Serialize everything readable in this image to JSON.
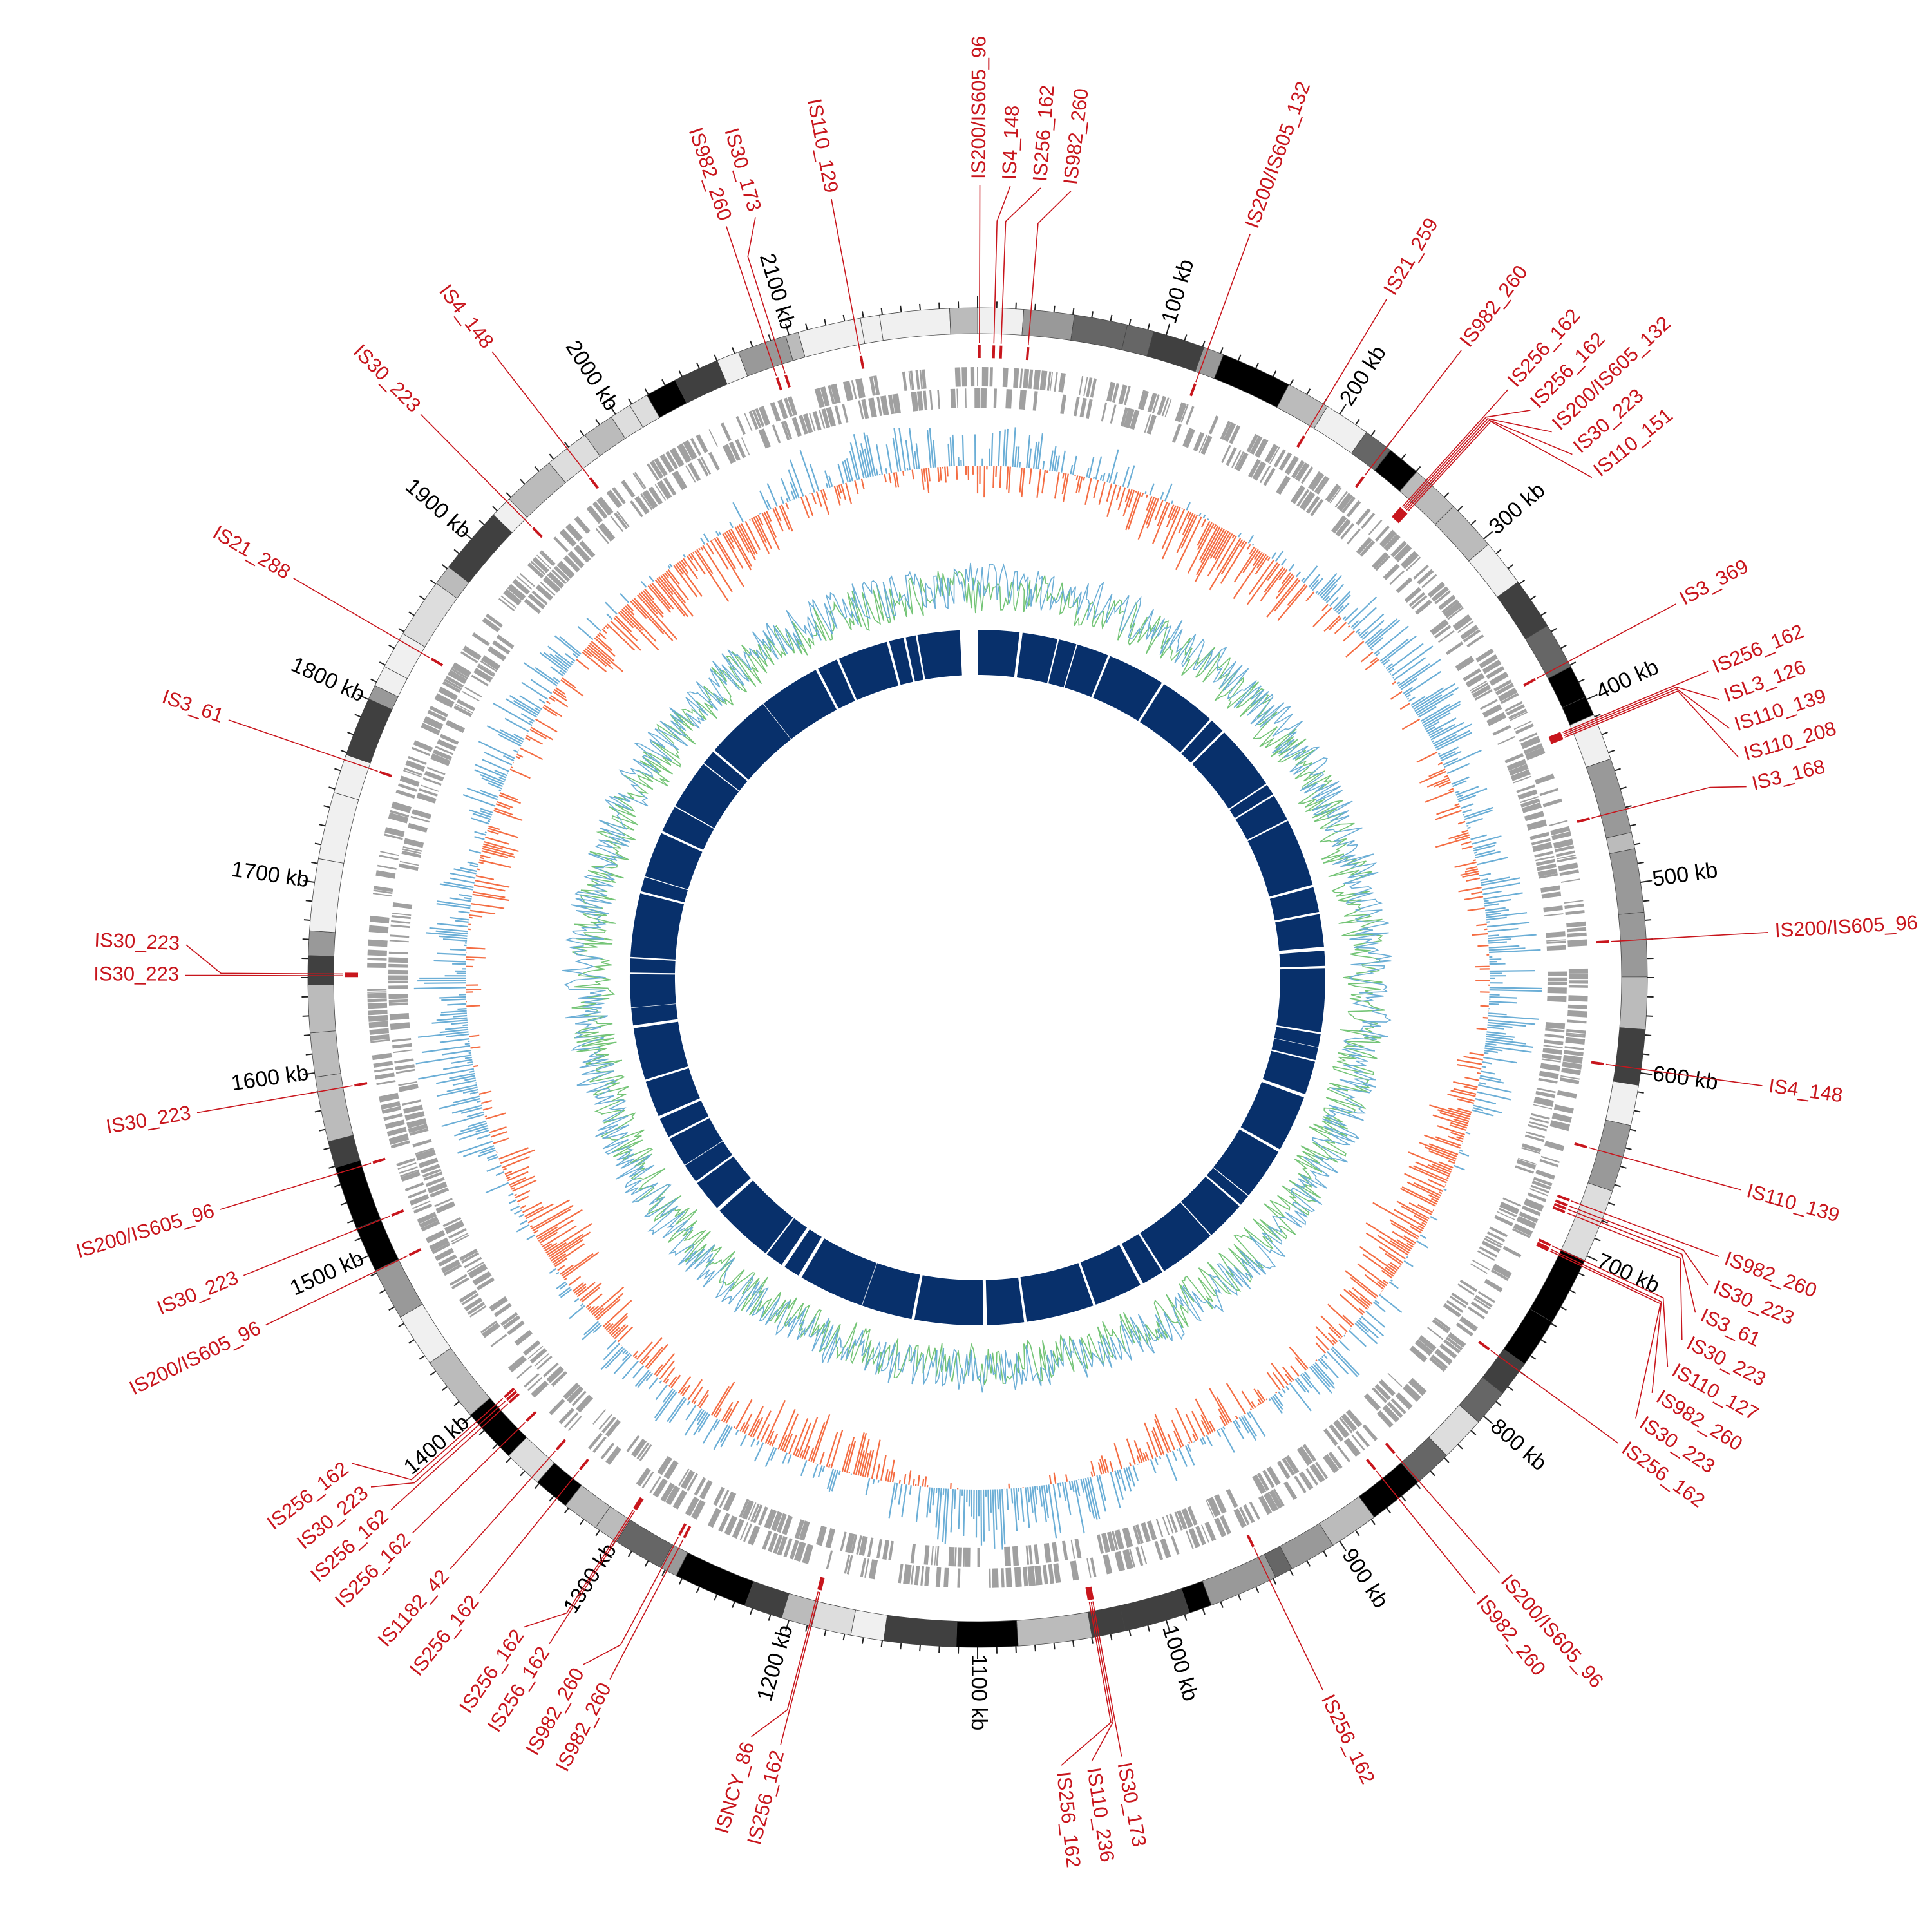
{
  "chart_data": {
    "type": "circular-genome-map",
    "genome_size_kb": 2200,
    "colors": {
      "is_element": "#c8161d",
      "cds": "#a0a0a0",
      "gc_positive": "#6baed6",
      "gc_negative": "#f46d43",
      "line_a": "#74c476",
      "line_b": "#6baed6",
      "blast": "#08306b"
    },
    "ticks": [
      {
        "kb": 100,
        "label": "100 kb"
      },
      {
        "kb": 200,
        "label": "200 kb"
      },
      {
        "kb": 300,
        "label": "300 kb"
      },
      {
        "kb": 400,
        "label": "400 kb"
      },
      {
        "kb": 500,
        "label": "500 kb"
      },
      {
        "kb": 600,
        "label": "600 kb"
      },
      {
        "kb": 700,
        "label": "700 kb"
      },
      {
        "kb": 800,
        "label": "800 kb"
      },
      {
        "kb": 900,
        "label": "900 kb"
      },
      {
        "kb": 1000,
        "label": "1000 kb"
      },
      {
        "kb": 1100,
        "label": "1100 kb"
      },
      {
        "kb": 1200,
        "label": "1200 kb"
      },
      {
        "kb": 1300,
        "label": "1300 kb"
      },
      {
        "kb": 1400,
        "label": "1400 kb"
      },
      {
        "kb": 1500,
        "label": "1500 kb"
      },
      {
        "kb": 1600,
        "label": "1600 kb"
      },
      {
        "kb": 1700,
        "label": "1700 kb"
      },
      {
        "kb": 1800,
        "label": "1800 kb"
      },
      {
        "kb": 1900,
        "label": "1900 kb"
      },
      {
        "kb": 2000,
        "label": "2000 kb"
      },
      {
        "kb": 2100,
        "label": "2100 kb"
      }
    ],
    "is_elements": [
      {
        "kb": 1,
        "name": "IS200/IS605_96"
      },
      {
        "kb": 9,
        "name": "IS4_148"
      },
      {
        "kb": 13,
        "name": "IS256_162"
      },
      {
        "kb": 28,
        "name": "IS982_260"
      },
      {
        "kb": 123,
        "name": "IS200/IS605_132"
      },
      {
        "kb": 190,
        "name": "IS21_259"
      },
      {
        "kb": 230,
        "name": "IS982_260"
      },
      {
        "kb": 257,
        "name": "IS256_162"
      },
      {
        "kb": 258,
        "name": "IS256_162"
      },
      {
        "kb": 259,
        "name": "IS200/IS605_132"
      },
      {
        "kb": 260,
        "name": "IS30_223"
      },
      {
        "kb": 261,
        "name": "IS110_151"
      },
      {
        "kb": 378,
        "name": "IS3_369"
      },
      {
        "kb": 411,
        "name": "IS256_162"
      },
      {
        "kb": 412,
        "name": "ISL3_126"
      },
      {
        "kb": 413,
        "name": "IS110_139"
      },
      {
        "kb": 414,
        "name": "IS110_208"
      },
      {
        "kb": 461,
        "name": "IS3_168"
      },
      {
        "kb": 530,
        "name": "IS200/IS605_96"
      },
      {
        "kb": 598,
        "name": "IS4_148"
      },
      {
        "kb": 645,
        "name": "IS110_139"
      },
      {
        "kb": 676,
        "name": "IS982_260"
      },
      {
        "kb": 679,
        "name": "IS30_223"
      },
      {
        "kb": 681,
        "name": "IS3_61"
      },
      {
        "kb": 683,
        "name": "IS30_223"
      },
      {
        "kb": 703,
        "name": "IS110_127"
      },
      {
        "kb": 705,
        "name": "IS982_260"
      },
      {
        "kb": 706,
        "name": "IS30_223"
      },
      {
        "kb": 770,
        "name": "IS256_162"
      },
      {
        "kb": 848,
        "name": "IS200/IS605_96"
      },
      {
        "kb": 862,
        "name": "IS982_260"
      },
      {
        "kb": 942,
        "name": "IS256_162"
      },
      {
        "kb": 1036,
        "name": "IS30_173"
      },
      {
        "kb": 1037,
        "name": "IS110_236"
      },
      {
        "kb": 1038,
        "name": "IS256_162"
      },
      {
        "kb": 1188,
        "name": "IS256_162"
      },
      {
        "kb": 1189,
        "name": "ISNCY_86"
      },
      {
        "kb": 1269,
        "name": "IS982_260"
      },
      {
        "kb": 1272,
        "name": "IS982_260"
      },
      {
        "kb": 1300,
        "name": "IS256_162"
      },
      {
        "kb": 1301,
        "name": "IS256_162"
      },
      {
        "kb": 1338,
        "name": "IS256_162"
      },
      {
        "kb": 1355,
        "name": "IS1182_42"
      },
      {
        "kb": 1378,
        "name": "IS256_162"
      },
      {
        "kb": 1392,
        "name": "IS256_162"
      },
      {
        "kb": 1394,
        "name": "IS30_223"
      },
      {
        "kb": 1396,
        "name": "IS256_162"
      },
      {
        "kb": 1491,
        "name": "IS200/IS605_96"
      },
      {
        "kb": 1515,
        "name": "IS30_223"
      },
      {
        "kb": 1546,
        "name": "IS200/IS605_96"
      },
      {
        "kb": 1590,
        "name": "IS30_223"
      },
      {
        "kb": 1651,
        "name": "IS30_223"
      },
      {
        "kb": 1652,
        "name": "IS30_223"
      },
      {
        "kb": 1766,
        "name": "IS3_61"
      },
      {
        "kb": 1835,
        "name": "IS21_288"
      },
      {
        "kb": 1927,
        "name": "IS30_223"
      },
      {
        "kb": 1969,
        "name": "IS4_148"
      },
      {
        "kb": 2087,
        "name": "IS982_260"
      },
      {
        "kb": 2092,
        "name": "IS30_173"
      },
      {
        "kb": 2135,
        "name": "IS110_129"
      }
    ]
  }
}
